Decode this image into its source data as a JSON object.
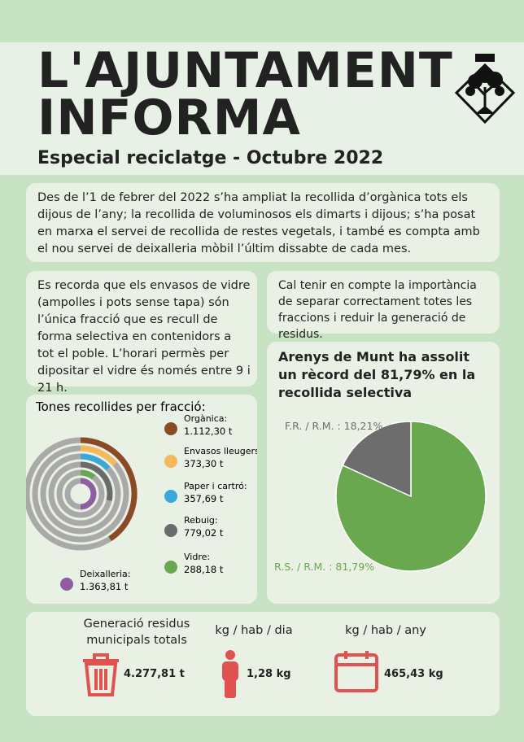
{
  "header": {
    "title_line1": "L'AJUNTAMENT",
    "title_line2": "INFORMA",
    "subtitle": "Especial reciclatge - Octubre 2022"
  },
  "paragraphs": [
    "Des de l’1 de febrer del 2022 s’ha ampliat la recollida d’orgànica tots els dijous de l’any; la recollida de voluminosos els dimarts i dijous; s’ha posat en marxa el servei de recollida de restes vegetals, i també es compta amb el nou servei de deixalleria mòbil l’últim dissabte de cada mes.",
    "Es recorda que els envasos de vidre (ampolles i pots sense tapa) són l’única fracció que es recull de forma selectiva en contenidors a tot el poble. L’horari permès per dipositar el vidre és només entre 9 i 21 h.",
    "Cal tenir en compte la importància de separar correctament totes les fraccions i reduir la generació de residus."
  ],
  "chart_data": [
    {
      "type": "radial_bar",
      "title": "Tones recollides per fracció:",
      "series": [
        {
          "name": "Orgànica:",
          "color": "#8b4a26",
          "values": [
            1112.3
          ],
          "value_labels": [
            "1.112,30 t"
          ]
        },
        {
          "name": "Envasos lleugers:",
          "color": "#f5b85a",
          "values": [
            373.3
          ],
          "value_labels": [
            "373,30 t"
          ]
        },
        {
          "name": "Paper i cartró:",
          "color": "#3aa7db",
          "values": [
            357.69
          ],
          "value_labels": [
            "357,69 t"
          ]
        },
        {
          "name": "Rebuig:",
          "color": "#6b6b6b",
          "values": [
            779.02
          ],
          "value_labels": [
            "779,02 t"
          ]
        },
        {
          "name": "Vidre:",
          "color": "#6aa84f",
          "values": [
            288.18
          ],
          "value_labels": [
            "288,18 t"
          ]
        },
        {
          "name": "Deixalleria:",
          "color": "#8e5ea2",
          "values": [
            1363.81
          ],
          "value_labels": [
            "1.363,81 t"
          ]
        }
      ]
    },
    {
      "type": "pie",
      "title": "Arenys de Munt ha assolit un rècord del 81,79% en la recollida selectiva",
      "values": [
        81.79,
        18.21
      ],
      "value_labels": [
        "R.S. / R.M. : 81,79%",
        "F.R. / R.M. : 18,21%"
      ],
      "colors": [
        "#6aa84f",
        "#6d6d6d"
      ]
    }
  ],
  "stats": [
    {
      "label": "Generació residus municipals totals",
      "value": "4.277,81 t"
    },
    {
      "label": "kg / hab / dia",
      "value": "1,28 kg"
    },
    {
      "label": "kg / hab / any",
      "value": "465,43 kg"
    }
  ]
}
